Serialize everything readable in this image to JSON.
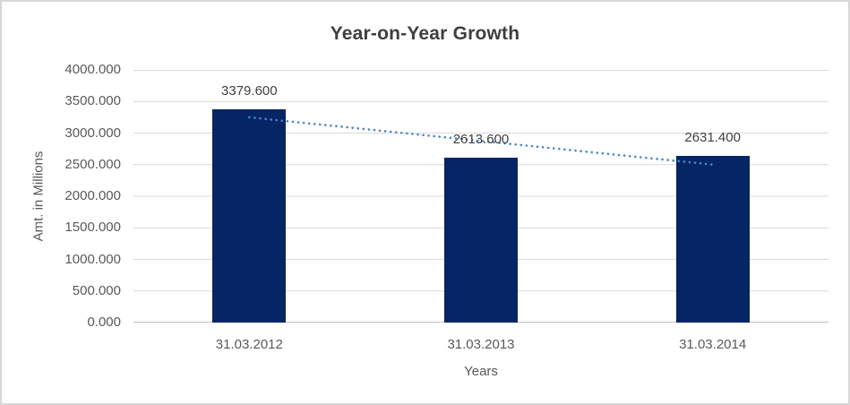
{
  "chart_data": {
    "type": "bar",
    "title": "Year-on-Year Growth",
    "xlabel": "Years",
    "ylabel": "Amt. in Millions",
    "categories": [
      "31.03.2012",
      "31.03.2013",
      "31.03.2014"
    ],
    "values": [
      3379.6,
      2613.6,
      2631.4
    ],
    "value_labels": [
      "3379.600",
      "2613.600",
      "2631.400"
    ],
    "ylim": [
      0,
      4000
    ],
    "ytick_step": 500,
    "ytick_labels": [
      "0.000",
      "500.000",
      "1000.000",
      "1500.000",
      "2000.000",
      "2500.000",
      "3000.000",
      "3500.000",
      "4000.000"
    ],
    "grid": "horizontal",
    "legend": "none",
    "trendline": {
      "type": "linear",
      "style": "dotted",
      "start_value": 3249.0,
      "end_value": 2500.8
    }
  },
  "colors": {
    "bar": "#052565",
    "trendline": "#4A86C8",
    "gridline": "#D9D9D9",
    "axis_line": "#BFBFBF",
    "title_text": "#3F3F3F",
    "data_label_text": "#404040",
    "tick_label_text": "#595959",
    "border": "#D7D7D7",
    "background": "#FFFFFF"
  }
}
